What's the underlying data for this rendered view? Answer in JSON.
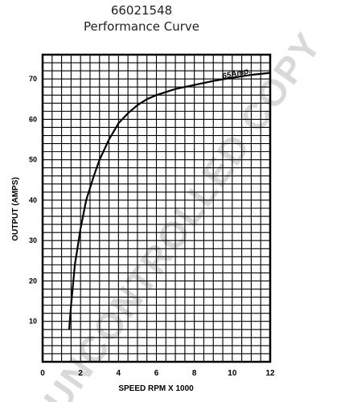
{
  "header": {
    "part_number": "66021548",
    "title": "Performance Curve"
  },
  "watermark": "UNCONTROLLED COPY",
  "colors": {
    "ink": "#000000",
    "watermark": "#d9d9d9"
  },
  "chart_data": {
    "type": "line",
    "title": "Performance Curve",
    "xlabel": "SPEED RPM X 1000",
    "ylabel": "OUTPUT (AMPS)",
    "xlim": [
      0,
      12
    ],
    "ylim": [
      0,
      76
    ],
    "x_ticks": [
      0,
      2,
      4,
      6,
      8,
      10,
      12
    ],
    "y_ticks": [
      10,
      20,
      30,
      40,
      50,
      60,
      70
    ],
    "grid": true,
    "series": [
      {
        "name": "",
        "x": [
          1.4,
          1.5,
          1.7,
          2.0,
          2.3,
          2.7,
          3.0,
          3.5,
          4.0,
          4.5,
          5.0,
          5.5,
          6.0,
          7.0,
          8.0,
          9.0,
          10.0,
          11.0,
          12.0
        ],
        "y": [
          8,
          14,
          24,
          33,
          40,
          46,
          50,
          55,
          59,
          61.5,
          63.5,
          65,
          66,
          67.5,
          68.5,
          69.5,
          70.3,
          71,
          71.5
        ]
      }
    ],
    "annotations": [
      {
        "text": "65Amp.",
        "x": 9.5,
        "y": 70
      }
    ]
  }
}
